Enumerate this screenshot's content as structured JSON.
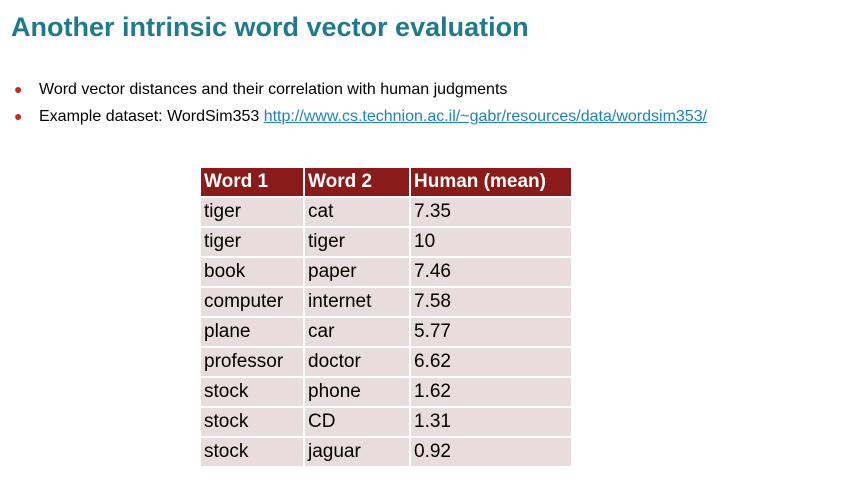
{
  "slide": {
    "title": "Another intrinsic word vector evaluation",
    "title_color": "#1f7a8c",
    "bullet_color": "#c0282d",
    "link_color": "#1f82c0",
    "bullets": [
      {
        "text": "Word vector distances and their correlation with human judgments"
      },
      {
        "text": "Example dataset: WordSim353 ",
        "link": "http://www.cs.technion.ac.il/~gabr/resources/data/wordsim353/"
      }
    ]
  },
  "table": {
    "header_color": "#8b1a1a",
    "row_color": "#e8dcdc",
    "headers": [
      "Word 1",
      "Word 2",
      "Human (mean)"
    ],
    "rows": [
      [
        "tiger",
        "cat",
        "7.35"
      ],
      [
        "tiger",
        "tiger",
        "10"
      ],
      [
        "book",
        "paper",
        "7.46"
      ],
      [
        "computer",
        "internet",
        "7.58"
      ],
      [
        "plane",
        "car",
        "5.77"
      ],
      [
        "professor",
        "doctor",
        "6.62"
      ],
      [
        "stock",
        "phone",
        "1.62"
      ],
      [
        "stock",
        "CD",
        "1.31"
      ],
      [
        "stock",
        "jaguar",
        "0.92"
      ]
    ]
  }
}
